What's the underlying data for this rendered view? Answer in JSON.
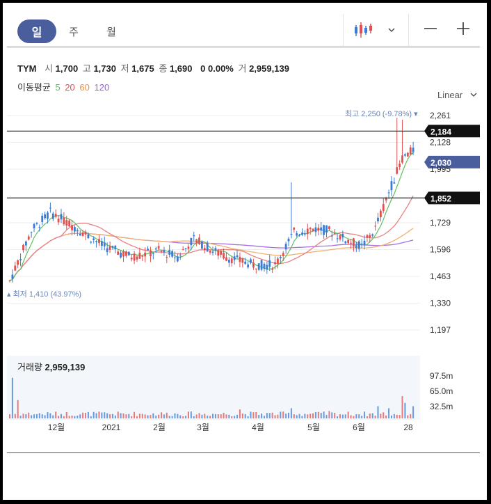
{
  "tabs": [
    "일",
    "주",
    "월"
  ],
  "quote": {
    "symbol": "TYM",
    "open_label": "시",
    "open": "1,700",
    "high_label": "고",
    "high": "1,730",
    "low_label": "저",
    "low": "1,675",
    "close_label": "종",
    "close": "1,690",
    "change": "0",
    "change_pct": "0.00%",
    "volume_label": "거",
    "volume": "2,959,139"
  },
  "ma": {
    "label": "이동평균",
    "p5": "5",
    "p20": "20",
    "p60": "60",
    "p120": "120"
  },
  "scale_mode": "Linear",
  "volume_panel": {
    "label": "거래량",
    "value": "2,959,139"
  },
  "colors": {
    "up": "#e05050",
    "down": "#3a7bd5",
    "ma5": "#5fbf5f",
    "ma20": "#e88080",
    "ma60": "#f2b070",
    "ma120": "#a66ee0",
    "accent": "#4a5e9e",
    "annotation": "#6a86b8"
  },
  "chart_data": {
    "type": "candlestick",
    "y_ticks": [
      2261,
      2128,
      1995,
      1729,
      1596,
      1463,
      1330,
      1197
    ],
    "y_range": [
      1100,
      2300
    ],
    "x_labels": [
      "12월",
      "2021",
      "2월",
      "3월",
      "4월",
      "5월",
      "6월",
      "28"
    ],
    "price_lines": [
      {
        "value": 2184,
        "label": "2,184"
      },
      {
        "value": 1852,
        "label": "1,852"
      }
    ],
    "current_price": {
      "value": 2030,
      "label": "2,030"
    },
    "high_annotation": {
      "value": 2250,
      "text": "최고 2,250 (-9.78%)"
    },
    "low_annotation": {
      "value": 1410,
      "text": "최저 1,410 (43.97%)"
    },
    "volume_ticks": [
      "97.5m",
      "65.0m",
      "32.5m"
    ],
    "volume_max": 120
  }
}
